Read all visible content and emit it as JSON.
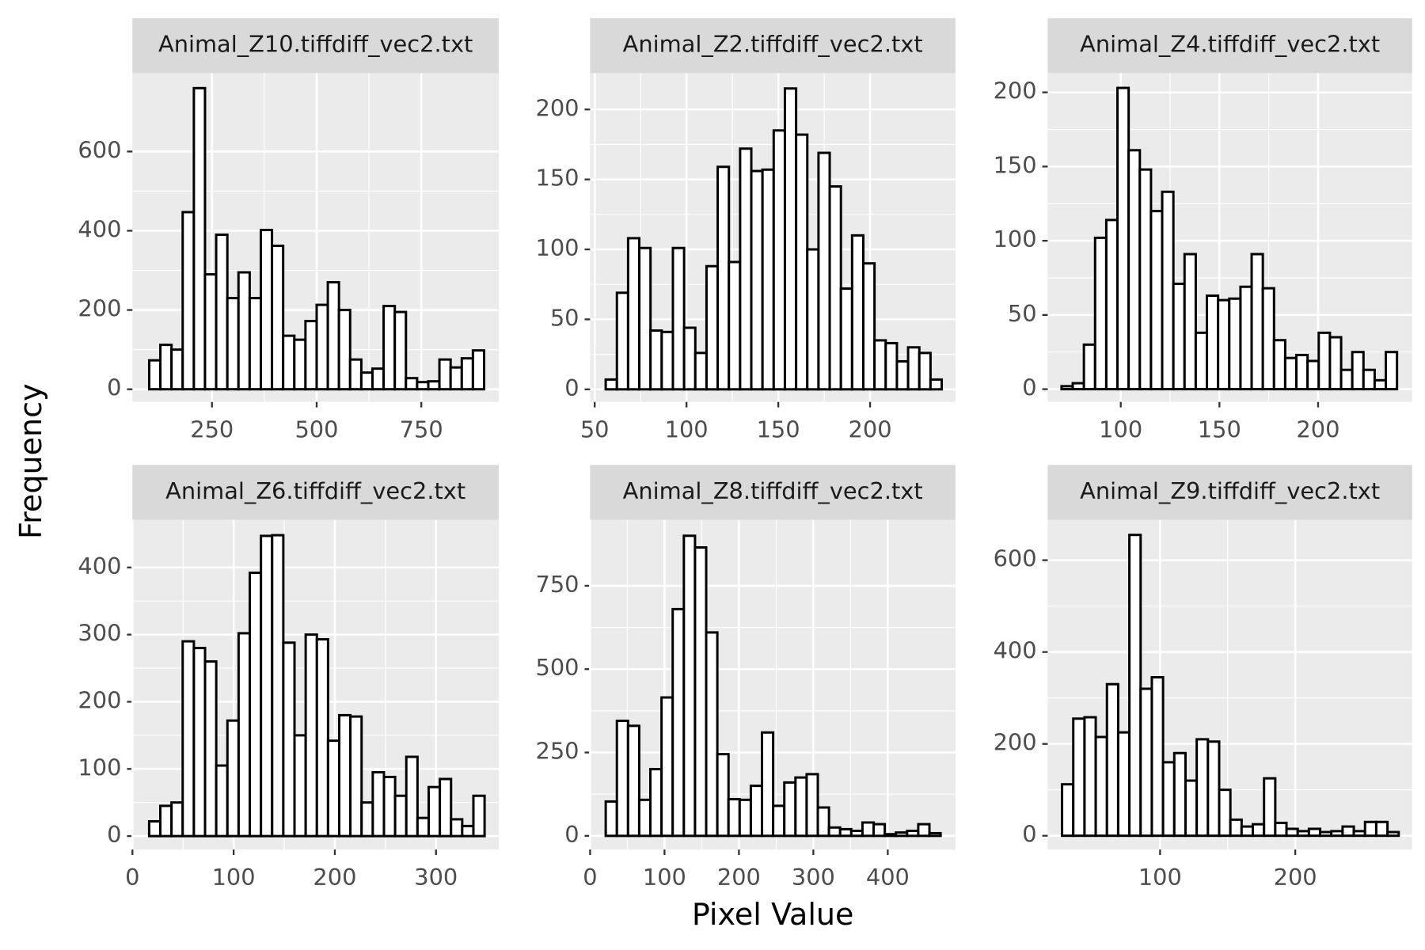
{
  "x_label": "Pixel Value",
  "y_label": "Frequency",
  "chart_data": [
    {
      "type": "histogram",
      "title": "Animal_Z10.tiffdiff_vec2.txt",
      "color": "#ffffff",
      "edgecolor": "#000000",
      "grid": true,
      "bins": [
        100,
        126.7,
        153.3,
        180,
        206.7,
        233.3,
        260,
        286.7,
        313.3,
        340,
        366.7,
        393.3,
        420,
        446.7,
        473.3,
        500,
        526.7,
        553.3,
        580,
        606.7,
        633.3,
        660,
        686.7,
        713.3,
        740,
        766.7,
        793.3,
        820,
        846.7,
        873.3,
        900
      ],
      "values": [
        73,
        112,
        100,
        447,
        760,
        290,
        390,
        230,
        295,
        230,
        402,
        362,
        135,
        125,
        172,
        213,
        270,
        200,
        75,
        42,
        52,
        210,
        195,
        28,
        18,
        20,
        75,
        55,
        78,
        98
      ],
      "xlim": [
        60,
        935
      ],
      "ylim": [
        -32,
        798
      ],
      "xticks": [
        250,
        500,
        750
      ],
      "yticks": [
        0,
        200,
        400,
        600
      ]
    },
    {
      "type": "histogram",
      "title": "Animal_Z2.tiffdiff_vec2.txt",
      "color": "#ffffff",
      "edgecolor": "#000000",
      "grid": true,
      "bins": [
        56,
        62.1,
        68.2,
        74.3,
        80.4,
        86.5,
        92.6,
        98.7,
        104.8,
        110.9,
        117,
        123.1,
        129.2,
        135.3,
        141.4,
        147.5,
        153.6,
        159.7,
        165.8,
        171.9,
        178,
        184.1,
        190.2,
        196.3,
        202.4,
        208.5,
        214.6,
        220.7,
        226.8,
        232.9,
        239
      ],
      "values": [
        7,
        69,
        108,
        101,
        42,
        41,
        101,
        44,
        26,
        88,
        159,
        91,
        172,
        156,
        157,
        185,
        215,
        182,
        100,
        169,
        145,
        72,
        110,
        90,
        35,
        33,
        20,
        30,
        26,
        7
      ],
      "xlim": [
        47.5,
        246.5
      ],
      "ylim": [
        -9,
        226
      ],
      "xticks": [
        50,
        100,
        150,
        200
      ],
      "yticks": [
        0,
        50,
        100,
        150,
        200
      ]
    },
    {
      "type": "histogram",
      "title": "Animal_Z4.tiffdiff_vec2.txt",
      "color": "#ffffff",
      "edgecolor": "#000000",
      "grid": true,
      "bins": [
        70,
        75.67,
        81.33,
        87,
        92.67,
        98.33,
        104,
        109.67,
        115.33,
        121,
        126.67,
        132.33,
        138,
        143.67,
        149.33,
        155,
        160.67,
        166.33,
        172,
        177.67,
        183.33,
        189,
        194.67,
        200.33,
        206,
        211.67,
        217.33,
        223,
        228.67,
        234.33,
        240
      ],
      "values": [
        2,
        4,
        30,
        102,
        114,
        203,
        161,
        148,
        120,
        133,
        71,
        91,
        38,
        63,
        60,
        61,
        69,
        91,
        68,
        33,
        21,
        23,
        19,
        38,
        35,
        13,
        25,
        13,
        6,
        25
      ],
      "xlim": [
        63,
        247.7
      ],
      "ylim": [
        -8.6,
        213
      ],
      "xticks": [
        100,
        150,
        200
      ],
      "yticks": [
        0,
        50,
        100,
        150,
        200
      ]
    },
    {
      "type": "histogram",
      "title": "Animal_Z6.tiffdiff_vec2.txt",
      "color": "#ffffff",
      "edgecolor": "#000000",
      "grid": true,
      "bins": [
        16.5,
        27.55,
        38.6,
        49.65,
        60.7,
        71.75,
        82.8,
        93.85,
        104.9,
        115.95,
        127,
        138.05,
        149.1,
        160.15,
        171.2,
        182.25,
        193.3,
        204.35,
        215.4,
        226.45,
        237.5,
        248.55,
        259.6,
        270.65,
        281.7,
        292.75,
        303.8,
        314.85,
        325.9,
        336.95,
        348
      ],
      "values": [
        22,
        45,
        50,
        290,
        280,
        260,
        105,
        172,
        302,
        392,
        447,
        448,
        288,
        150,
        300,
        293,
        142,
        180,
        178,
        50,
        95,
        88,
        60,
        118,
        27,
        73,
        85,
        25,
        15,
        60
      ],
      "xlim": [
        0,
        362
      ],
      "ylim": [
        -20,
        471
      ],
      "xticks": [
        0,
        100,
        200,
        300
      ],
      "yticks": [
        0,
        100,
        200,
        300,
        400
      ]
    },
    {
      "type": "histogram",
      "title": "Animal_Z8.tiffdiff_vec2.txt",
      "color": "#ffffff",
      "edgecolor": "#000000",
      "grid": true,
      "bins": [
        21,
        36,
        51,
        66,
        81,
        96,
        111,
        126,
        141,
        156,
        171,
        186,
        201,
        216,
        231,
        246,
        261,
        276,
        291,
        306,
        321,
        336,
        351,
        366,
        381,
        396,
        411,
        426,
        441,
        456,
        471
      ],
      "values": [
        103,
        345,
        330,
        108,
        200,
        415,
        680,
        900,
        865,
        610,
        245,
        110,
        108,
        150,
        310,
        90,
        160,
        175,
        185,
        85,
        25,
        20,
        15,
        40,
        35,
        5,
        10,
        15,
        35,
        8
      ],
      "xlim": [
        0,
        491
      ],
      "ylim": [
        -41,
        948
      ],
      "xticks": [
        0,
        100,
        200,
        300,
        400
      ],
      "yticks": [
        0,
        250,
        500,
        750
      ]
    },
    {
      "type": "histogram",
      "title": "Animal_Z9.tiffdiff_vec2.txt",
      "color": "#ffffff",
      "edgecolor": "#000000",
      "grid": true,
      "bins": [
        27.5,
        35.8,
        44.1,
        52.4,
        60.7,
        69,
        77.3,
        85.6,
        93.9,
        102.2,
        110.5,
        118.8,
        127.1,
        135.4,
        143.7,
        152,
        160.3,
        168.6,
        176.9,
        185.2,
        193.5,
        201.8,
        210.1,
        218.4,
        226.7,
        235,
        243.3,
        251.6,
        259.9,
        268.2,
        276.5
      ],
      "values": [
        112,
        255,
        258,
        215,
        330,
        225,
        655,
        320,
        345,
        160,
        180,
        120,
        210,
        205,
        100,
        35,
        20,
        25,
        125,
        28,
        15,
        10,
        15,
        8,
        10,
        20,
        10,
        30,
        30,
        8
      ],
      "xlim": [
        16.9,
        286.5
      ],
      "ylim": [
        -30,
        688
      ],
      "xticks": [
        100,
        200
      ],
      "yticks": [
        0,
        200,
        400,
        600
      ]
    }
  ]
}
